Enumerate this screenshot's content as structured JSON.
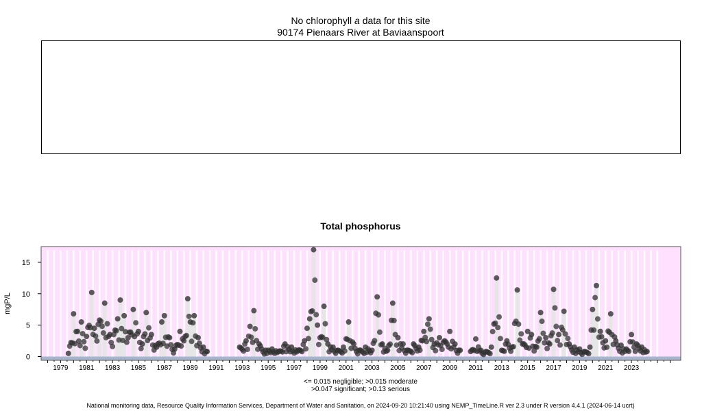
{
  "header": {
    "no_data_prefix": "No chlorophyll",
    "no_data_italic": "a",
    "no_data_suffix": "data for this site",
    "site": "90174 Pienaars River at Baviaanspoort"
  },
  "chart_data": {
    "type": "scatter",
    "title": "Total phosphorus",
    "xlabel": "",
    "ylabel": "mgP/L",
    "xlim": [
      1977.5,
      2026.8
    ],
    "ylim": [
      -0.6,
      17.5
    ],
    "yticks": [
      0,
      5,
      10,
      15
    ],
    "xtick_labels": [
      "1979",
      "1981",
      "1983",
      "1985",
      "1987",
      "1989",
      "1991",
      "1993",
      "1995",
      "1997",
      "1999",
      "2001",
      "2003",
      "2005",
      "2007",
      "2009",
      "2011",
      "2013",
      "2015",
      "2017",
      "2019",
      "2021",
      "2023"
    ],
    "background_color": "#ffe0ff",
    "thresholds": [
      {
        "label": "negligible",
        "value": 0.015
      },
      {
        "label": "moderate",
        "value": 0.047
      },
      {
        "label": "significant",
        "value": 0.13
      }
    ],
    "threshold_band_color": "#a9b5cd",
    "point_color": "#333333",
    "series": [
      {
        "x": [
          1979.6,
          1980.0,
          1980.3,
          1980.6,
          1981.0,
          1981.4,
          1981.6,
          1982.0,
          1982.4,
          1982.8,
          1983.2,
          1983.4,
          1983.6,
          1983.9,
          1984.2,
          1984.6,
          1985.0,
          1985.3,
          1985.6,
          1986.0,
          1986.4,
          1986.8,
          1987.0,
          1987.4,
          1987.8,
          1988.2,
          1988.5,
          1988.8,
          1989.0,
          1989.3,
          1989.6,
          1990.0,
          1990.3
        ],
        "y": [
          0.5,
          6.8,
          4.0,
          5.5,
          3.2,
          10.2,
          4.5,
          5.8,
          8.5,
          3.5,
          4.2,
          6.0,
          9.0,
          6.5,
          3.0,
          7.5,
          4.0,
          2.0,
          7.0,
          3.5,
          1.5,
          5.5,
          6.5,
          3.0,
          1.2,
          4.0,
          2.5,
          9.2,
          5.5,
          6.5,
          3.0,
          1.5,
          0.8
        ]
      },
      {
        "x": [
          1992.8,
          1993.3,
          1993.6,
          1993.9,
          1994.3,
          1994.8,
          1995.3,
          1995.8,
          1996.3,
          1996.8,
          1997.3,
          1997.8,
          1998.0,
          1998.2,
          1998.5,
          1998.8,
          1999.0,
          1999.3,
          1999.6,
          2000.0,
          2000.4,
          2000.8,
          2001.2,
          2001.6,
          2002.0,
          2002.5,
          2003.0,
          2003.4,
          2003.8,
          2004.2,
          2004.6,
          2005.0,
          2005.4,
          2005.8,
          2006.2,
          2006.6,
          2007.0,
          2007.4,
          2007.8,
          2008.2,
          2008.6,
          2009.0,
          2009.4,
          2009.8
        ],
        "y": [
          1.5,
          2.5,
          4.8,
          7.3,
          2.0,
          1.0,
          1.2,
          0.8,
          2.0,
          1.5,
          1.0,
          2.5,
          4.5,
          6.0,
          17.0,
          5.0,
          3.0,
          8.0,
          2.0,
          1.5,
          1.0,
          1.5,
          5.5,
          2.0,
          1.0,
          1.5,
          1.0,
          9.5,
          2.0,
          1.0,
          8.5,
          3.0,
          2.0,
          1.0,
          2.0,
          1.5,
          4.0,
          6.0,
          2.0,
          3.0,
          2.5,
          4.0,
          2.0,
          1.0
        ]
      },
      {
        "x": [
          2010.6,
          2011.0,
          2011.4,
          2011.8,
          2012.2,
          2012.6,
          2013.0,
          2013.4,
          2013.8,
          2014.2,
          2014.6,
          2015.0,
          2015.3,
          2015.7,
          2016.0,
          2016.4,
          2016.7,
          2017.0,
          2017.4,
          2017.8,
          2018.2,
          2018.6,
          2019.0,
          2019.4,
          2019.8,
          2020.0,
          2020.3,
          2020.6,
          2021.0,
          2021.4,
          2021.8,
          2022.2,
          2022.6,
          2023.0,
          2023.4,
          2023.8,
          2024.2
        ],
        "y": [
          0.8,
          2.8,
          1.0,
          0.8,
          1.5,
          12.5,
          1.0,
          2.5,
          1.5,
          10.6,
          2.0,
          4.0,
          3.5,
          1.5,
          7.0,
          3.0,
          2.0,
          10.7,
          3.5,
          7.2,
          2.0,
          1.5,
          1.2,
          0.8,
          1.5,
          7.5,
          11.3,
          4.0,
          2.5,
          6.8,
          2.5,
          1.8,
          1.2,
          3.5,
          2.0,
          1.5,
          0.8
        ]
      }
    ]
  },
  "legend": {
    "line1": "<= 0.015 negligible; >0.015 moderate",
    "line2": ">0.047 significant; >0.13 serious"
  },
  "footer": "National monitoring data, Resource Quality Information Services, Department of Water and Sanitation, on 2024-09-20 10:21:40 using NEMP_TimeLine.R ver 2.3 under R version 4.4.1 (2024-06-14 ucrt)"
}
